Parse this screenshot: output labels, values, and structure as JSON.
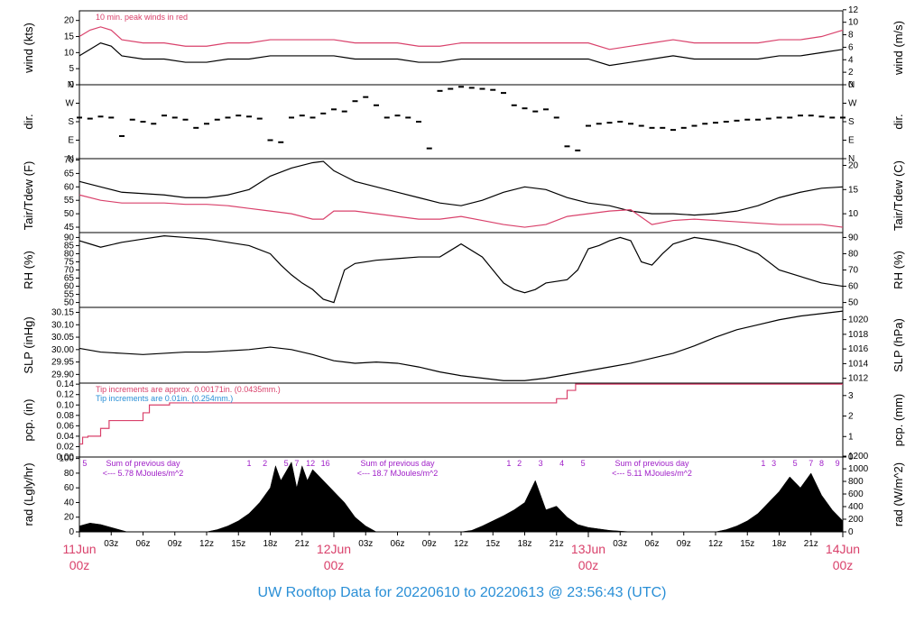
{
  "title": "UW Rooftop Data for 20220610  to  20220613 @ 23:56:43  (UTC)",
  "colors": {
    "red": "#d9416b",
    "blue": "#2a8fd6",
    "purple": "#a020c8",
    "black": "#000000"
  },
  "x_axis": {
    "hours_span": [
      0,
      72
    ],
    "ticks": [
      {
        "h": 3,
        "label": "03z"
      },
      {
        "h": 6,
        "label": "06z"
      },
      {
        "h": 9,
        "label": "09z"
      },
      {
        "h": 12,
        "label": "12z"
      },
      {
        "h": 15,
        "label": "15z"
      },
      {
        "h": 18,
        "label": "18z"
      },
      {
        "h": 21,
        "label": "21z"
      },
      {
        "h": 27,
        "label": "03z"
      },
      {
        "h": 30,
        "label": "06z"
      },
      {
        "h": 33,
        "label": "09z"
      },
      {
        "h": 36,
        "label": "12z"
      },
      {
        "h": 39,
        "label": "15z"
      },
      {
        "h": 42,
        "label": "18z"
      },
      {
        "h": 45,
        "label": "21z"
      },
      {
        "h": 51,
        "label": "03z"
      },
      {
        "h": 54,
        "label": "06z"
      },
      {
        "h": 57,
        "label": "09z"
      },
      {
        "h": 60,
        "label": "12z"
      },
      {
        "h": 63,
        "label": "15z"
      },
      {
        "h": 66,
        "label": "18z"
      },
      {
        "h": 69,
        "label": "21z"
      }
    ],
    "day_labels": [
      {
        "h": 0,
        "date": "11Jun",
        "time": "00z"
      },
      {
        "h": 24,
        "date": "12Jun",
        "time": "00z"
      },
      {
        "h": 48,
        "date": "13Jun",
        "time": "00z"
      },
      {
        "h": 72,
        "date": "14Jun",
        "time": "00z"
      }
    ]
  },
  "chart_data": [
    {
      "id": "wind",
      "type": "line",
      "ylabel": "wind (kts)",
      "ylabel_right": "wind (m/s)",
      "ylim": [
        0,
        23
      ],
      "left_ticks": [
        0,
        5,
        10,
        15,
        20
      ],
      "right_ticks": [
        0,
        2,
        4,
        6,
        8,
        10,
        12
      ],
      "right_scale": 0.5144,
      "note": "10 min. peak winds in red",
      "series": [
        {
          "color": "#000000",
          "x": [
            0,
            1,
            2,
            3,
            4,
            6,
            8,
            10,
            12,
            14,
            16,
            18,
            20,
            22,
            24,
            26,
            28,
            30,
            32,
            34,
            36,
            38,
            40,
            42,
            44,
            46,
            48,
            50,
            52,
            54,
            56,
            58,
            60,
            62,
            64,
            66,
            68,
            70,
            72
          ],
          "y": [
            9,
            11,
            13,
            12,
            9,
            8,
            8,
            7,
            7,
            8,
            8,
            9,
            9,
            9,
            9,
            8,
            8,
            8,
            7,
            7,
            8,
            8,
            8,
            8,
            8,
            8,
            8,
            6,
            7,
            8,
            9,
            8,
            8,
            8,
            8,
            9,
            9,
            10,
            11
          ]
        },
        {
          "color": "#d9416b",
          "x": [
            0,
            1,
            2,
            3,
            4,
            6,
            8,
            10,
            12,
            14,
            16,
            18,
            20,
            22,
            24,
            26,
            28,
            30,
            32,
            34,
            36,
            38,
            40,
            42,
            44,
            46,
            48,
            50,
            52,
            54,
            56,
            58,
            60,
            62,
            64,
            66,
            68,
            70,
            72
          ],
          "y": [
            15,
            17,
            18,
            17,
            14,
            13,
            13,
            12,
            12,
            13,
            13,
            14,
            14,
            14,
            14,
            13,
            13,
            13,
            12,
            12,
            13,
            13,
            13,
            13,
            13,
            13,
            13,
            11,
            12,
            13,
            14,
            13,
            13,
            13,
            13,
            14,
            14,
            15,
            17
          ]
        }
      ]
    },
    {
      "id": "dir",
      "type": "scatter",
      "ylabel": "dir.",
      "ylabel_right": "dir.",
      "ylim": [
        0,
        360
      ],
      "tick_labels": [
        {
          "v": 0,
          "t": "N"
        },
        {
          "v": 90,
          "t": "E"
        },
        {
          "v": 180,
          "t": "S"
        },
        {
          "v": 270,
          "t": "W"
        },
        {
          "v": 360,
          "t": "N"
        }
      ],
      "series": [
        {
          "color": "#000000",
          "x": [
            0,
            1,
            2,
            3,
            4,
            5,
            6,
            7,
            8,
            9,
            10,
            11,
            12,
            13,
            14,
            15,
            16,
            17,
            18,
            19,
            20,
            21,
            22,
            23,
            24,
            25,
            26,
            27,
            28,
            29,
            30,
            31,
            32,
            33,
            34,
            35,
            36,
            37,
            38,
            39,
            40,
            41,
            42,
            43,
            44,
            45,
            46,
            47,
            48,
            49,
            50,
            51,
            52,
            53,
            54,
            55,
            56,
            57,
            58,
            59,
            60,
            61,
            62,
            63,
            64,
            65,
            66,
            67,
            68,
            69,
            70,
            71,
            72
          ],
          "y": [
            200,
            195,
            205,
            200,
            110,
            190,
            180,
            170,
            210,
            200,
            190,
            150,
            170,
            190,
            200,
            210,
            205,
            195,
            90,
            80,
            200,
            210,
            200,
            220,
            240,
            230,
            280,
            300,
            260,
            200,
            210,
            200,
            180,
            50,
            330,
            340,
            350,
            345,
            340,
            335,
            320,
            260,
            245,
            230,
            240,
            200,
            60,
            40,
            160,
            170,
            175,
            180,
            170,
            160,
            150,
            150,
            140,
            150,
            160,
            170,
            175,
            180,
            185,
            190,
            190,
            195,
            200,
            200,
            210,
            210,
            205,
            200,
            200
          ]
        }
      ]
    },
    {
      "id": "temp",
      "type": "line",
      "ylabel": "Tair/Tdew (F)",
      "ylabel_right": "Tair/Tdew (C)",
      "ylim": [
        43,
        70.5
      ],
      "left_ticks": [
        45,
        50,
        55,
        60,
        65,
        70
      ],
      "right_ticks": [
        10,
        15,
        20
      ],
      "series": [
        {
          "name": "Tair",
          "color": "#000000",
          "x": [
            0,
            2,
            4,
            6,
            8,
            10,
            12,
            14,
            16,
            18,
            20,
            22,
            23,
            24,
            26,
            28,
            30,
            32,
            34,
            36,
            38,
            40,
            42,
            44,
            46,
            48,
            50,
            52,
            54,
            56,
            58,
            60,
            62,
            64,
            66,
            68,
            70,
            72
          ],
          "y": [
            62,
            60,
            58,
            57.5,
            57,
            56,
            56,
            57,
            59,
            64,
            67,
            69,
            69.5,
            66,
            62,
            60,
            58,
            56,
            54,
            53,
            55,
            58,
            60,
            59,
            56,
            54,
            53,
            51,
            50,
            50,
            49.5,
            50,
            51,
            53,
            56,
            58,
            59.5,
            60
          ]
        },
        {
          "name": "Tdew",
          "color": "#d9416b",
          "x": [
            0,
            2,
            4,
            6,
            8,
            10,
            12,
            14,
            16,
            18,
            20,
            22,
            23,
            24,
            26,
            28,
            30,
            32,
            34,
            36,
            38,
            40,
            42,
            44,
            46,
            48,
            50,
            52,
            54,
            56,
            58,
            60,
            62,
            64,
            66,
            68,
            70,
            72
          ],
          "y": [
            57,
            55,
            54,
            54,
            54,
            53.5,
            53.5,
            53,
            52,
            51,
            50,
            48,
            48,
            51,
            51,
            50,
            49,
            48,
            48,
            49,
            47.5,
            46,
            45,
            46,
            49,
            50,
            51,
            51.5,
            46,
            47.5,
            48,
            47.5,
            47,
            46.5,
            46,
            46,
            46,
            45
          ]
        }
      ]
    },
    {
      "id": "rh",
      "type": "line",
      "ylabel": "RH (%)",
      "ylabel_right": "RH (%)",
      "ylim": [
        47,
        93
      ],
      "left_ticks": [
        50,
        55,
        60,
        65,
        70,
        75,
        80,
        85,
        90
      ],
      "right_ticks": [
        50,
        60,
        70,
        80,
        90
      ],
      "series": [
        {
          "color": "#000000",
          "x": [
            0,
            1,
            2,
            4,
            6,
            8,
            10,
            12,
            14,
            16,
            18,
            19,
            20,
            21,
            22,
            23,
            24,
            25,
            26,
            28,
            30,
            32,
            34,
            36,
            38,
            39,
            40,
            41,
            42,
            43,
            44,
            46,
            47,
            48,
            49,
            50,
            51,
            52,
            53,
            54,
            55,
            56,
            58,
            60,
            62,
            64,
            66,
            68,
            70,
            72
          ],
          "y": [
            88,
            86,
            84,
            87,
            89,
            91,
            90,
            89,
            87,
            85,
            80,
            73,
            67,
            62,
            58,
            52,
            50,
            70,
            74,
            76,
            77,
            78,
            78,
            86,
            78,
            70,
            62,
            58,
            56,
            58,
            62,
            64,
            70,
            83,
            85,
            88,
            90,
            88,
            75,
            73,
            80,
            86,
            90,
            88,
            85,
            80,
            70,
            66,
            62,
            60
          ]
        }
      ]
    },
    {
      "id": "slp",
      "type": "line",
      "ylabel": "SLP (inHg)",
      "ylabel_right": "SLP (hPa)",
      "ylim": [
        29.865,
        30.17
      ],
      "left_ticks": [
        29.9,
        29.95,
        30.0,
        30.05,
        30.1,
        30.15
      ],
      "left_labels": [
        "29.90",
        "29.95",
        "30.00",
        "30.05",
        "30.10",
        "30.15"
      ],
      "right_ticks": [
        1012,
        1014,
        1016,
        1018,
        1020
      ],
      "right_scale": 33.8639,
      "series": [
        {
          "color": "#000000",
          "x": [
            0,
            2,
            4,
            6,
            8,
            10,
            12,
            14,
            16,
            18,
            20,
            22,
            24,
            26,
            28,
            30,
            32,
            34,
            36,
            38,
            40,
            42,
            44,
            46,
            48,
            50,
            52,
            54,
            56,
            58,
            60,
            62,
            64,
            66,
            68,
            70,
            72
          ],
          "y": [
            30.005,
            29.99,
            29.985,
            29.98,
            29.985,
            29.99,
            29.99,
            29.995,
            30.0,
            30.01,
            30.0,
            29.98,
            29.955,
            29.945,
            29.95,
            29.945,
            29.93,
            29.91,
            29.895,
            29.885,
            29.875,
            29.875,
            29.885,
            29.9,
            29.915,
            29.93,
            29.945,
            29.965,
            29.985,
            30.015,
            30.05,
            30.08,
            30.1,
            30.12,
            30.135,
            30.145,
            30.155
          ]
        }
      ]
    },
    {
      "id": "pcp",
      "type": "line",
      "ylabel": "pcp. (in)",
      "ylabel_right": "pcp. (mm)",
      "ylim": [
        0,
        0.142
      ],
      "left_ticks": [
        0,
        0.02,
        0.04,
        0.06,
        0.08,
        0.1,
        0.12,
        0.14
      ],
      "left_labels": [
        "0.00",
        "0.02",
        "0.04",
        "0.06",
        "0.08",
        "0.10",
        "0.12",
        "0.14"
      ],
      "right_ticks": [
        0,
        1,
        2,
        3
      ],
      "right_scale": 25.4,
      "notes": [
        {
          "text": "Tip increments are approx. 0.00171in. (0.0435mm.)",
          "color": "#d9416b"
        },
        {
          "text": "Tip increments are 0.01in. (0.254mm.)",
          "color": "#2a8fd6"
        }
      ],
      "series": [
        {
          "color": "#d9416b",
          "x": [
            0,
            0.3,
            0.3,
            0.8,
            0.8,
            2,
            2,
            2.8,
            2.8,
            6,
            6,
            6.6,
            6.6,
            8.5,
            8.5,
            45,
            45,
            46,
            46,
            46.8,
            46.8,
            72
          ],
          "y": [
            0.025,
            0.025,
            0.038,
            0.038,
            0.04,
            0.04,
            0.055,
            0.055,
            0.07,
            0.07,
            0.085,
            0.085,
            0.1,
            0.1,
            0.104,
            0.104,
            0.112,
            0.112,
            0.128,
            0.128,
            0.14,
            0.14
          ]
        }
      ]
    },
    {
      "id": "rad",
      "type": "area",
      "ylabel": "rad (Lgly/hr)",
      "ylabel_right": "rad (W/m^2)",
      "ylim": [
        0,
        102
      ],
      "left_ticks": [
        0,
        20,
        40,
        60,
        80,
        100
      ],
      "right_ticks": [
        0,
        200,
        400,
        600,
        800,
        1000,
        1200
      ],
      "right_scale": 11.63,
      "hour_marks": [
        "5",
        "1",
        "2",
        "5",
        "7",
        "12",
        "16",
        "1",
        "2",
        "3",
        "4",
        "5",
        "1",
        "3",
        "5",
        "7",
        "8",
        "9"
      ],
      "day_sums": [
        {
          "label": "Sum of previous day",
          "value": "<--- 5.78 MJoules/m^2"
        },
        {
          "label": "Sum of previous day",
          "value": "<--- 18.7 MJoules/m^2"
        },
        {
          "label": "Sum of previous day",
          "value": "<--- 5.11 MJoules/m^2"
        }
      ],
      "series": [
        {
          "color": "#000000",
          "x": [
            0,
            1,
            2,
            3,
            4,
            4.5,
            12,
            13,
            14,
            15,
            16,
            17,
            18,
            18.5,
            19,
            20,
            20.5,
            21,
            21.5,
            22,
            23,
            24,
            25,
            26,
            27,
            28,
            36,
            37,
            38,
            39,
            40,
            41,
            42,
            43,
            44,
            45,
            46,
            47,
            48,
            49,
            50,
            51,
            52,
            60,
            61,
            62,
            63,
            64,
            65,
            66,
            67,
            68,
            69,
            70,
            71,
            72
          ],
          "y": [
            8,
            12,
            10,
            6,
            2,
            0,
            0,
            3,
            8,
            15,
            25,
            40,
            60,
            90,
            70,
            95,
            60,
            90,
            70,
            85,
            70,
            55,
            40,
            20,
            8,
            0,
            0,
            2,
            8,
            15,
            22,
            30,
            40,
            70,
            30,
            35,
            20,
            10,
            6,
            4,
            2,
            1,
            0,
            0,
            3,
            8,
            15,
            25,
            40,
            55,
            75,
            60,
            80,
            50,
            30,
            15
          ]
        }
      ]
    }
  ]
}
